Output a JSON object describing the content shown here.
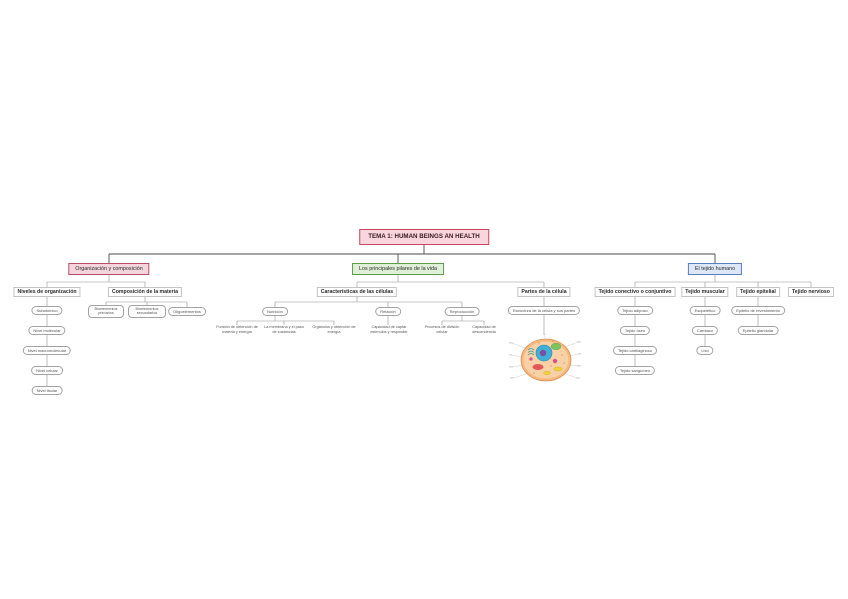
{
  "root": {
    "label": "TEMA 1: HUMAN BEINGS AN HEALTH"
  },
  "organizacion": {
    "label": "Organización y composición",
    "niveles": {
      "label": "Niveles de organización",
      "items": [
        "Subatómico",
        "Nivel molecular",
        "Nivel macromolecular",
        "Nivel celular",
        "Nivel tisular"
      ]
    },
    "composicion": {
      "label": "Composición de la materia",
      "items": [
        "Bioelementos primarios",
        "Bioelementos secundarios",
        "Oligoelementos"
      ]
    }
  },
  "pilares": {
    "label": "Los principales pilares de la vida",
    "caracteristicas": {
      "label": "Características de las células",
      "nutricion": {
        "label": "Nutrición",
        "items": [
          "Función de obtención de materia y energía",
          "La membrana y el paso de sustancias",
          "Orgánulos y obtención de energía"
        ]
      },
      "relacion": {
        "label": "Relación",
        "items": [
          "Capacidad de captar estímulos y responder"
        ]
      },
      "reproduccion": {
        "label": "Reproducción",
        "items": [
          "Procesos de división celular",
          "Capacidad de descendencia"
        ]
      }
    },
    "partes": {
      "label": "Partes de la célula",
      "items": [
        "Estructura de la célula y sus partes"
      ]
    }
  },
  "tejido": {
    "label": "El tejido humano",
    "conectivo": {
      "label": "Tejido conectivo o conjuntivo",
      "items": [
        "Tejido adiposo",
        "Tejido óseo",
        "Tejido cartilaginoso",
        "Tejido sanguíneo"
      ]
    },
    "muscular": {
      "label": "Tejido muscular",
      "items": [
        "Esquelético",
        "Cardíaco",
        "Liso"
      ]
    },
    "epitelial": {
      "label": "Tejido epitelial",
      "items": [
        "Epitelio de revestimiento",
        "Epitelio glandular"
      ]
    },
    "nervioso": {
      "label": "Tejido nervioso"
    }
  },
  "colors": {
    "root_fill": "#f9d6de",
    "root_border": "#c8465f",
    "org_fill": "#f4d5dd",
    "org_border": "#b8506a",
    "pil_fill": "#e0f0d8",
    "pil_border": "#5e9c4c",
    "tej_fill": "#dde7f6",
    "tej_border": "#5a7fc0"
  }
}
